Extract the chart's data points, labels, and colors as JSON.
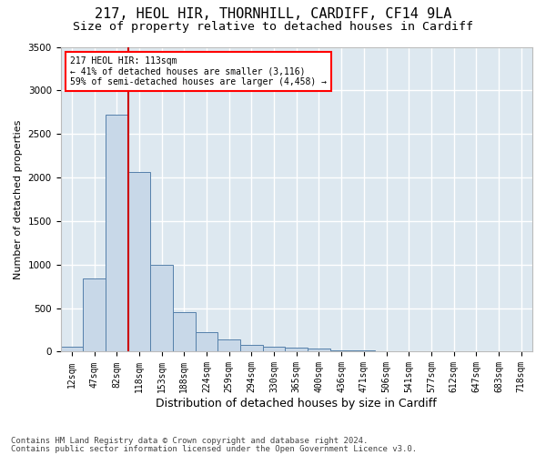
{
  "title1": "217, HEOL HIR, THORNHILL, CARDIFF, CF14 9LA",
  "title2": "Size of property relative to detached houses in Cardiff",
  "xlabel": "Distribution of detached houses by size in Cardiff",
  "ylabel": "Number of detached properties",
  "footnote1": "Contains HM Land Registry data © Crown copyright and database right 2024.",
  "footnote2": "Contains public sector information licensed under the Open Government Licence v3.0.",
  "annotation_line1": "217 HEOL HIR: 113sqm",
  "annotation_line2": "← 41% of detached houses are smaller (3,116)",
  "annotation_line3": "59% of semi-detached houses are larger (4,458) →",
  "bar_categories": [
    "12sqm",
    "47sqm",
    "82sqm",
    "118sqm",
    "153sqm",
    "188sqm",
    "224sqm",
    "259sqm",
    "294sqm",
    "330sqm",
    "365sqm",
    "400sqm",
    "436sqm",
    "471sqm",
    "506sqm",
    "541sqm",
    "577sqm",
    "612sqm",
    "647sqm",
    "683sqm",
    "718sqm"
  ],
  "bar_values": [
    60,
    840,
    2720,
    2060,
    1000,
    450,
    220,
    140,
    80,
    55,
    45,
    35,
    20,
    12,
    8,
    5,
    3,
    2,
    1,
    1,
    1
  ],
  "bar_color": "#c8d8e8",
  "bar_edge_color": "#5580aa",
  "vline_color": "#cc0000",
  "vline_x": 3,
  "ylim": [
    0,
    3500
  ],
  "yticks": [
    0,
    500,
    1000,
    1500,
    2000,
    2500,
    3000,
    3500
  ],
  "background_color": "#ffffff",
  "plot_bg_color": "#dde8f0",
  "grid_color": "#ffffff",
  "title1_fontsize": 11,
  "title2_fontsize": 9.5,
  "xlabel_fontsize": 9,
  "ylabel_fontsize": 8,
  "tick_fontsize": 7,
  "footnote_fontsize": 6.5
}
